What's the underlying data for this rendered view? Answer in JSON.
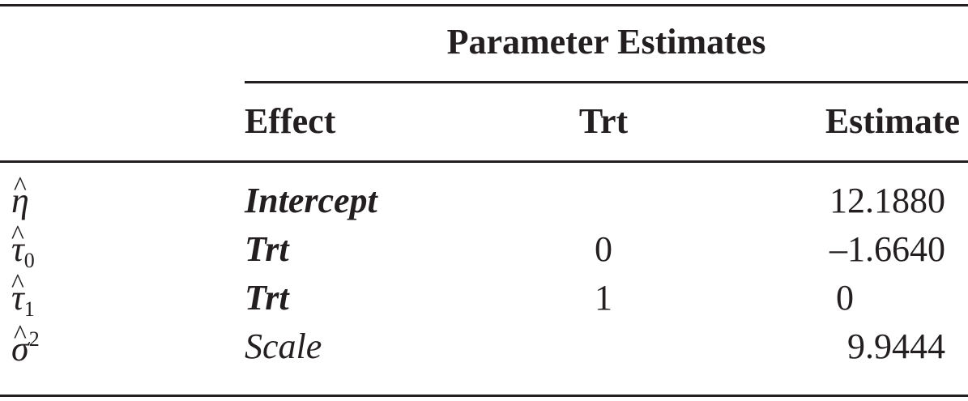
{
  "table": {
    "title": "Parameter Estimates",
    "headers": {
      "effect": "Effect",
      "trt": "Trt",
      "estimate": "Estimate"
    },
    "rows": [
      {
        "symbol": "η",
        "hat": "^",
        "sub": "",
        "sup": "",
        "effect": "Intercept",
        "trt": "",
        "estimate": "12.1880"
      },
      {
        "symbol": "τ",
        "hat": "^",
        "sub": "0",
        "sup": "",
        "effect": "Trt",
        "trt": "0",
        "estimate": "–1.6640"
      },
      {
        "symbol": "τ",
        "hat": "^",
        "sub": "1",
        "sup": "",
        "effect": "Trt",
        "trt": "1",
        "estimate": "0"
      },
      {
        "symbol": "σ",
        "hat": "^",
        "sub": "",
        "sup": "2",
        "effect": "Scale",
        "trt": "",
        "estimate": "9.9444"
      }
    ]
  }
}
